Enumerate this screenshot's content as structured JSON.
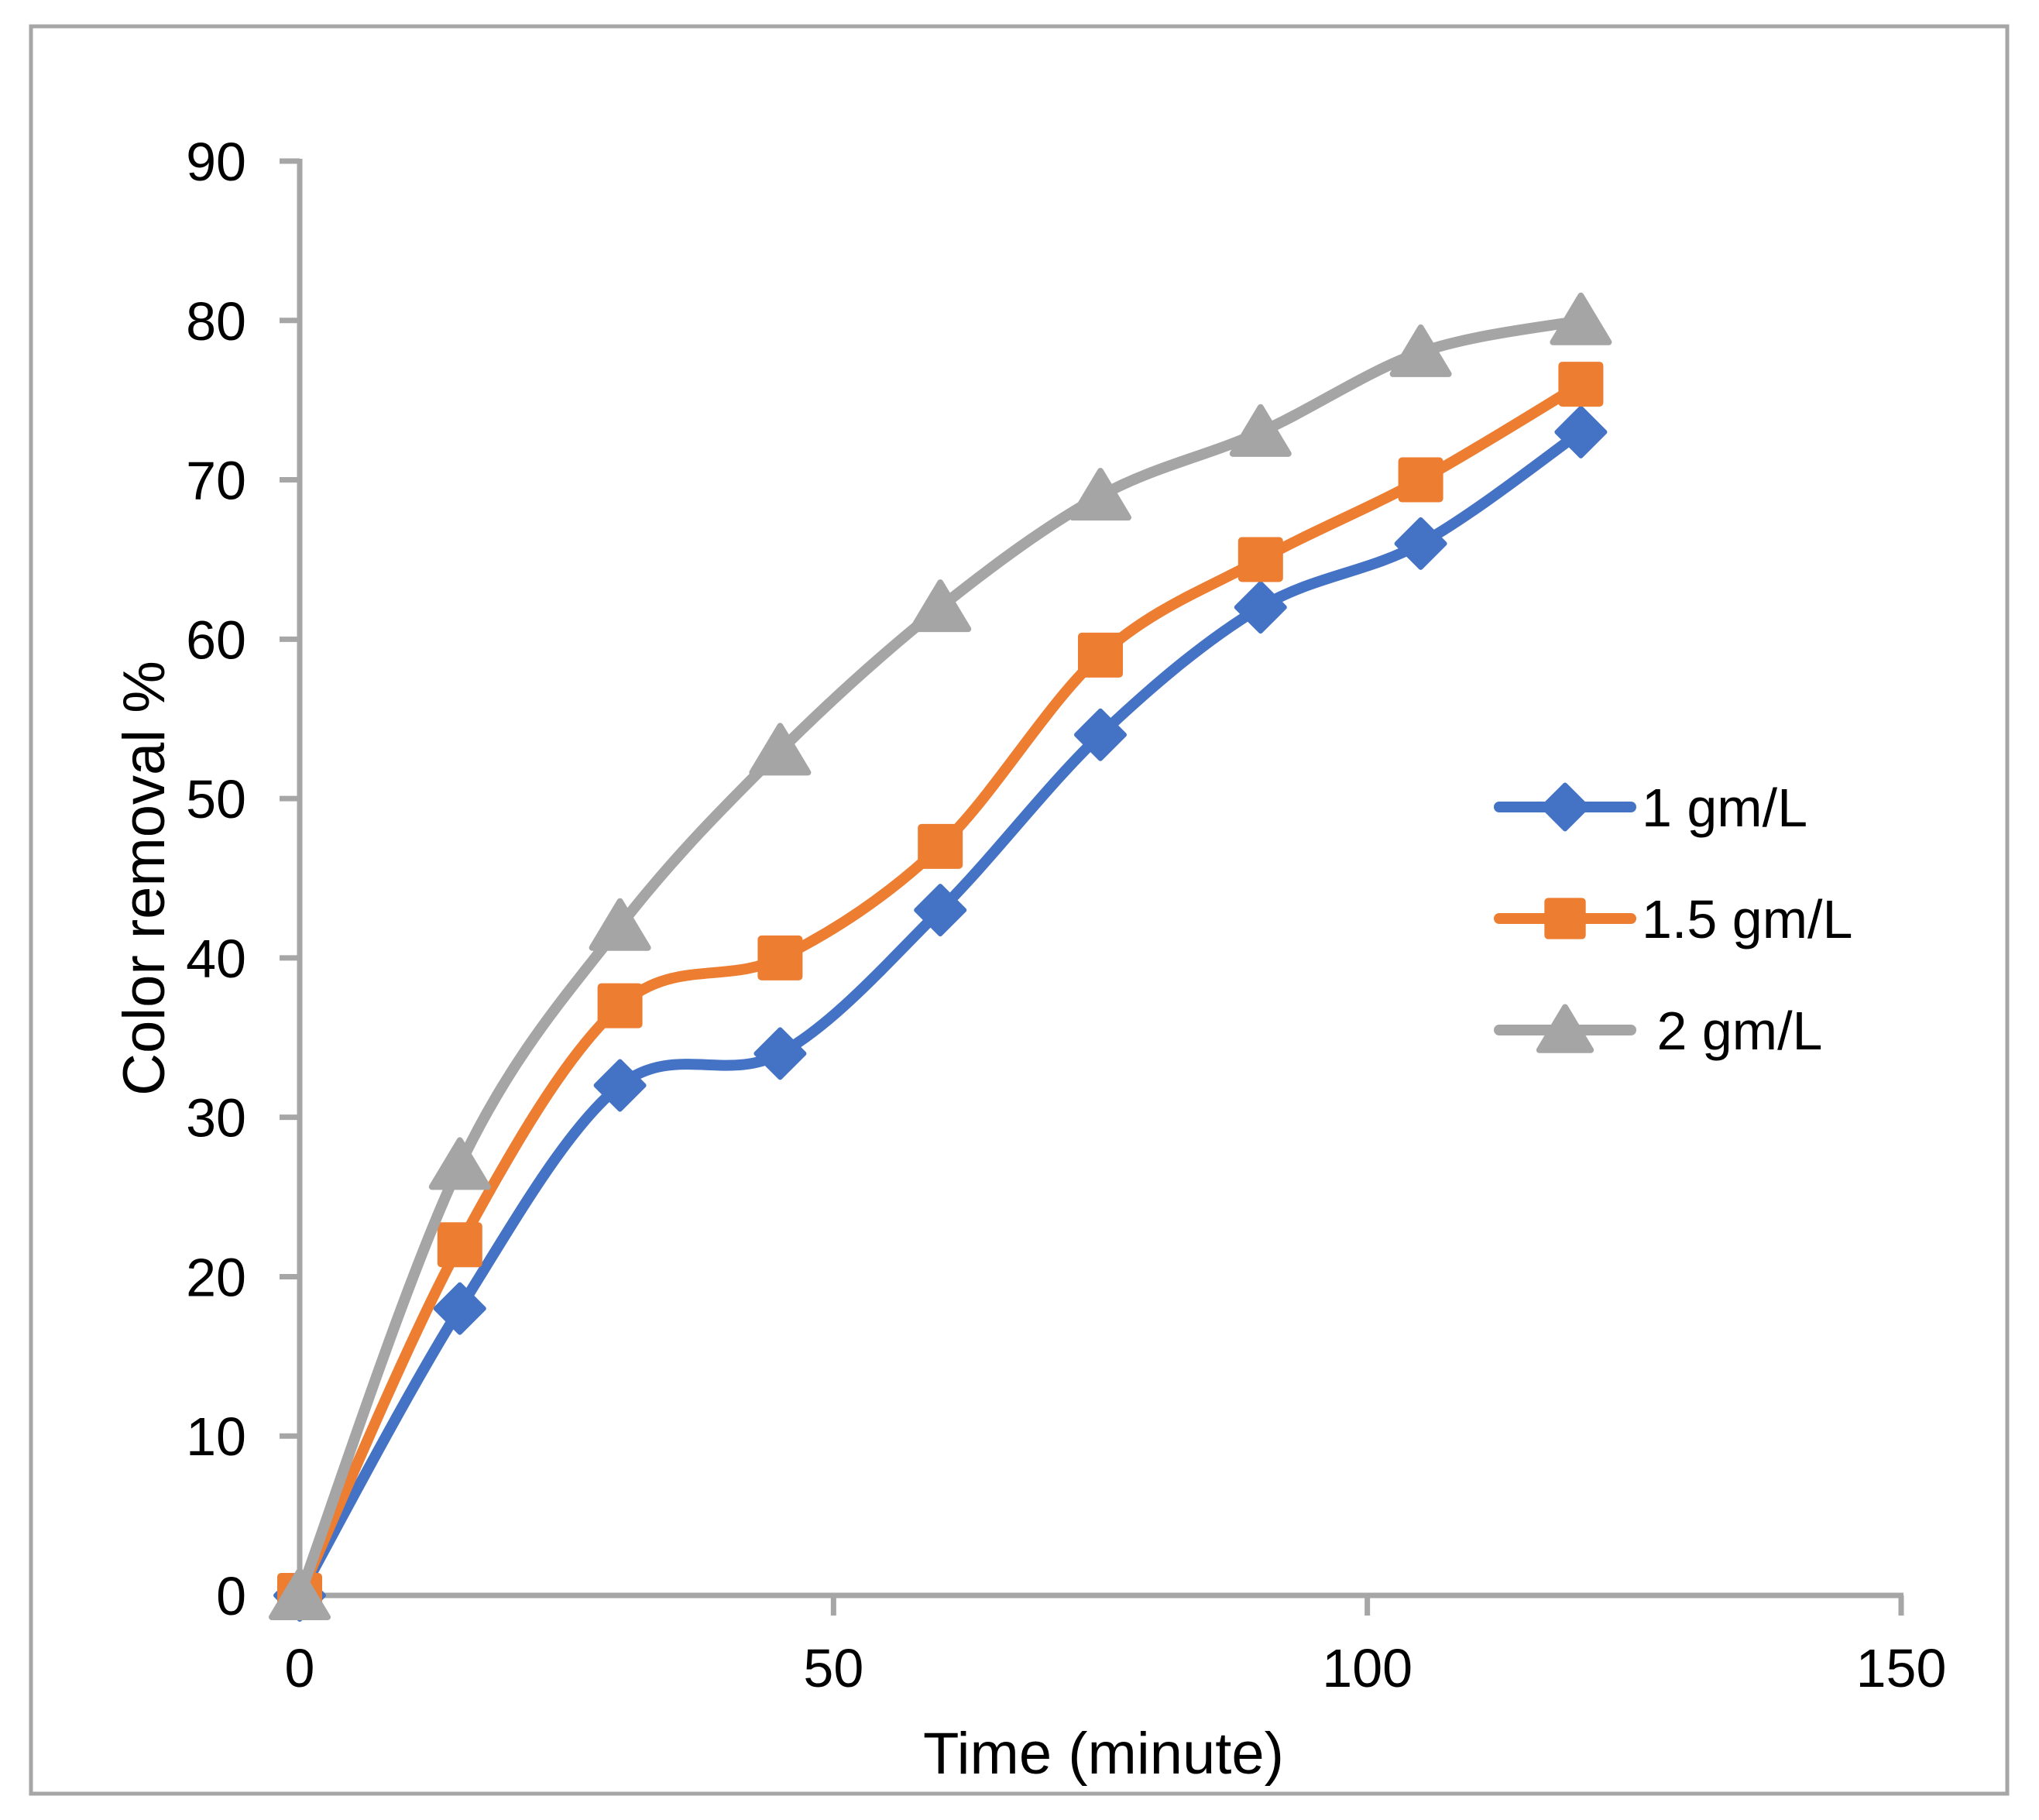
{
  "chart_data": {
    "type": "line",
    "title": "",
    "xlabel": "Time (minute)",
    "ylabel": "Color removal %",
    "x": [
      0,
      15,
      30,
      45,
      60,
      75,
      90,
      105,
      120
    ],
    "series": [
      {
        "name": "1 gm/L",
        "marker": "diamond",
        "color": "#4472C4",
        "values": [
          0,
          18,
          32,
          34,
          43,
          54,
          62,
          66,
          73
        ]
      },
      {
        "name": "1.5 gm/L",
        "marker": "square",
        "color": "#ED7D31",
        "values": [
          0,
          22,
          37,
          40,
          47,
          59,
          65,
          70,
          76
        ]
      },
      {
        "name": " 2 gm/L",
        "marker": "triangle",
        "color": "#A5A5A5",
        "values": [
          0,
          27,
          42,
          53,
          62,
          69,
          73,
          78,
          80
        ]
      }
    ],
    "xlim": [
      0,
      150
    ],
    "ylim": [
      0,
      90
    ],
    "x_ticks": [
      0,
      50,
      100,
      150
    ],
    "y_ticks": [
      0,
      10,
      20,
      30,
      40,
      50,
      60,
      70,
      80,
      90
    ],
    "grid": false,
    "smooth": true,
    "legend_position": "middle-right"
  },
  "style": {
    "axis_color": "#A6A6A6",
    "border_color": "#A6A6A6",
    "text_color": "#000000",
    "background": "#FFFFFF"
  }
}
